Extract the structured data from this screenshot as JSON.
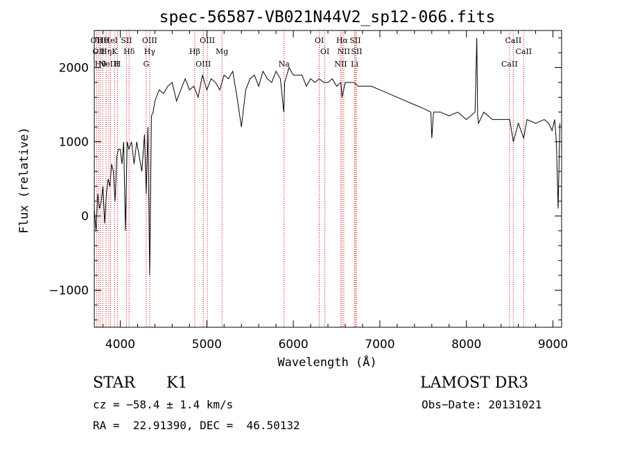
{
  "chart_data": {
    "type": "line",
    "title": "spec-56587-VB021N44V2_sp12-066.fits",
    "xlabel": "Wavelength (Å)",
    "ylabel": "Flux (relative)",
    "xlim": [
      3700,
      9100
    ],
    "ylim": [
      -1500,
      2500
    ],
    "xticks": [
      4000,
      5000,
      6000,
      7000,
      8000,
      9000
    ],
    "yticks": [
      -1000,
      0,
      1000,
      2000
    ],
    "grid": false,
    "series": [
      {
        "x": [
          3700,
          3720,
          3740,
          3760,
          3780,
          3800,
          3820,
          3840,
          3860,
          3880,
          3900,
          3920,
          3940,
          3960,
          3980,
          4000,
          4020,
          4040,
          4060,
          4080,
          4100,
          4130,
          4160,
          4190,
          4220,
          4250,
          4280,
          4300,
          4320,
          4340,
          4360,
          4380,
          4400,
          4450,
          4500,
          4550,
          4600,
          4650,
          4700,
          4750,
          4800,
          4850,
          4900,
          4950,
          5000,
          5050,
          5100,
          5150,
          5200,
          5250,
          5300,
          5350,
          5400,
          5450,
          5500,
          5550,
          5600,
          5650,
          5700,
          5750,
          5800,
          5850,
          5890,
          5900,
          5950,
          6000,
          6050,
          6100,
          6150,
          6200,
          6250,
          6300,
          6350,
          6400,
          6450,
          6500,
          6550,
          6563,
          6600,
          6650,
          6700,
          6750,
          6800,
          6900,
          7000,
          7100,
          7200,
          7300,
          7400,
          7500,
          7590,
          7600,
          7620,
          7700,
          7800,
          7900,
          8000,
          8100,
          8120,
          8130,
          8140,
          8200,
          8300,
          8400,
          8500,
          8542,
          8600,
          8662,
          8700,
          8800,
          8900,
          8950,
          8990,
          9000,
          9020,
          9040,
          9060,
          9080
        ],
        "y": [
          100,
          -200,
          300,
          100,
          200,
          400,
          -100,
          300,
          500,
          400,
          700,
          600,
          200,
          800,
          900,
          900,
          700,
          1000,
          -200,
          1000,
          900,
          1000,
          700,
          1000,
          800,
          600,
          1100,
          300,
          1200,
          -800,
          1350,
          1400,
          1550,
          1700,
          1650,
          1750,
          1800,
          1550,
          1700,
          1850,
          1700,
          1750,
          1600,
          1900,
          1700,
          1850,
          1800,
          1700,
          1900,
          1850,
          1950,
          1600,
          1200,
          1700,
          1850,
          1900,
          1750,
          1950,
          1850,
          1800,
          1950,
          1850,
          1400,
          1800,
          2000,
          1900,
          1900,
          1900,
          1750,
          1850,
          1800,
          1850,
          1800,
          1800,
          1850,
          1750,
          1800,
          1600,
          1800,
          1800,
          1800,
          1750,
          1750,
          1750,
          1700,
          1650,
          1600,
          1550,
          1500,
          1450,
          1400,
          1050,
          1400,
          1400,
          1350,
          1400,
          1300,
          1400,
          2400,
          1350,
          1250,
          1400,
          1300,
          1300,
          1300,
          1000,
          1250,
          1050,
          1300,
          1250,
          1300,
          1250,
          1150,
          1200,
          1300,
          1000,
          100,
          1250
        ]
      }
    ],
    "lines": [
      {
        "x": 3727,
        "labels": [
          "OII"
        ]
      },
      {
        "x": 3750,
        "labels": [
          "OII"
        ]
      },
      {
        "x": 3771,
        "labels": [
          "Hθ"
        ]
      },
      {
        "x": 3798,
        "labels": [
          "Hθ"
        ]
      },
      {
        "x": 3836,
        "labels": [
          "Hη"
        ]
      },
      {
        "x": 3869,
        "labels": [
          "NeIII"
        ]
      },
      {
        "x": 3889,
        "labels": [
          "HeI"
        ]
      },
      {
        "x": 3934,
        "labels": [
          "K"
        ]
      },
      {
        "x": 3969,
        "labels": [
          "H"
        ]
      },
      {
        "x": 4072,
        "labels": [
          "SII"
        ]
      },
      {
        "x": 4102,
        "labels": [
          "Hδ"
        ]
      },
      {
        "x": 4300,
        "labels": [
          "G"
        ]
      },
      {
        "x": 4340,
        "labels": [
          "OIII",
          "Hγ"
        ]
      },
      {
        "x": 4861,
        "labels": [
          "Hβ"
        ]
      },
      {
        "x": 4959,
        "labels": [
          "OIII"
        ]
      },
      {
        "x": 5007,
        "labels": [
          "OIII"
        ]
      },
      {
        "x": 5175,
        "labels": [
          "Mg"
        ]
      },
      {
        "x": 5893,
        "labels": [
          "Na"
        ]
      },
      {
        "x": 6300,
        "labels": [
          "OI"
        ]
      },
      {
        "x": 6364,
        "labels": [
          "OI"
        ]
      },
      {
        "x": 6548,
        "labels": [
          "NII"
        ]
      },
      {
        "x": 6563,
        "labels": [
          "Hα"
        ]
      },
      {
        "x": 6583,
        "labels": [
          "NII"
        ]
      },
      {
        "x": 6708,
        "labels": [
          "Li"
        ]
      },
      {
        "x": 6716,
        "labels": [
          "SII"
        ]
      },
      {
        "x": 6731,
        "labels": [
          "SII"
        ]
      },
      {
        "x": 8498,
        "labels": [
          "CaII"
        ]
      },
      {
        "x": 8542,
        "labels": [
          "CaII"
        ]
      },
      {
        "x": 8662,
        "labels": [
          "CaII"
        ]
      }
    ],
    "line_color": "#cc0000"
  },
  "info": {
    "object_class": "STAR",
    "subclass": "K1",
    "survey": "LAMOST DR3",
    "cz_text": "cz = −58.4 ± 1.4 km/s",
    "obs_date_text": "Obs−Date: 20131021",
    "coords_text": "RA =  22.91390, DEC =  46.50132"
  }
}
